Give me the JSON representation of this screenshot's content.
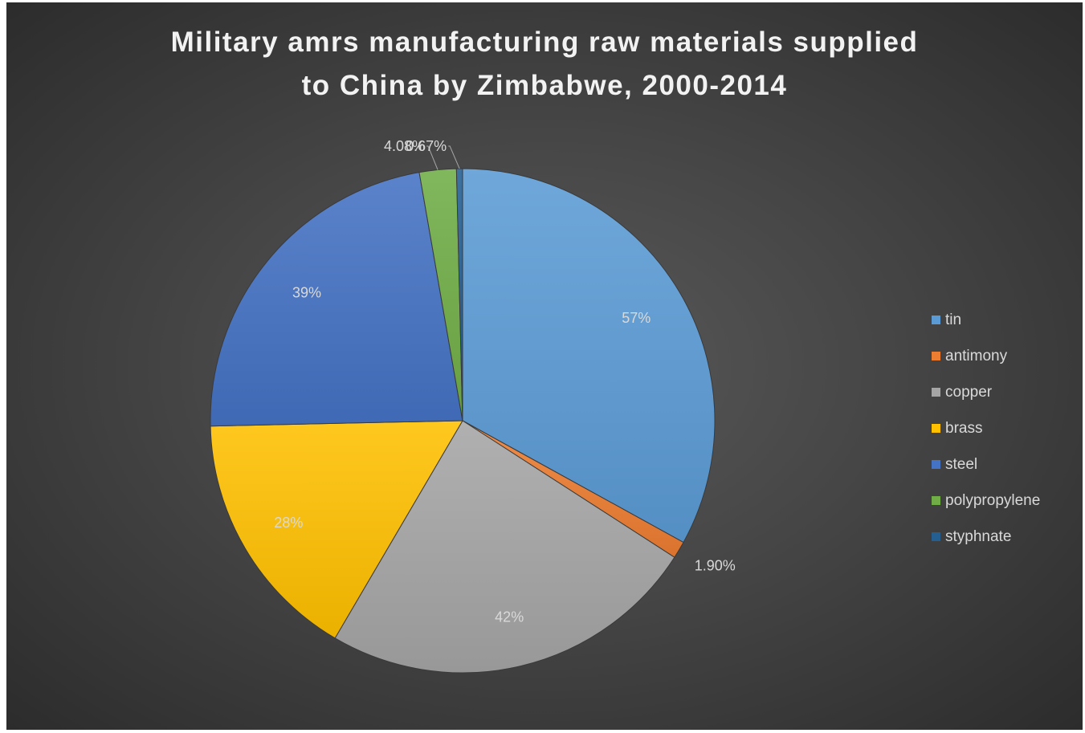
{
  "chart_data": {
    "type": "pie",
    "title_lines": [
      "Military amrs manufacturing raw materials supplied",
      "to China by Zimbabwe, 2000-2014"
    ],
    "legend_position": "right",
    "slices": [
      {
        "name": "tin",
        "value": 57,
        "label": "57%",
        "color": "#5b9bd5"
      },
      {
        "name": "antimony",
        "value": 1.9,
        "label": "1.90%",
        "color": "#ed7d31"
      },
      {
        "name": "copper",
        "value": 42,
        "label": "42%",
        "color": "#a5a5a5"
      },
      {
        "name": "brass",
        "value": 28,
        "label": "28%",
        "color": "#ffc000"
      },
      {
        "name": "steel",
        "value": 39,
        "label": "39%",
        "color": "#4472c4"
      },
      {
        "name": "polypropylene",
        "value": 4.08,
        "label": "4.08%",
        "color": "#70ad47"
      },
      {
        "name": "styphnate",
        "value": 0.67,
        "label": "0.67%",
        "color": "#255e91"
      }
    ]
  }
}
